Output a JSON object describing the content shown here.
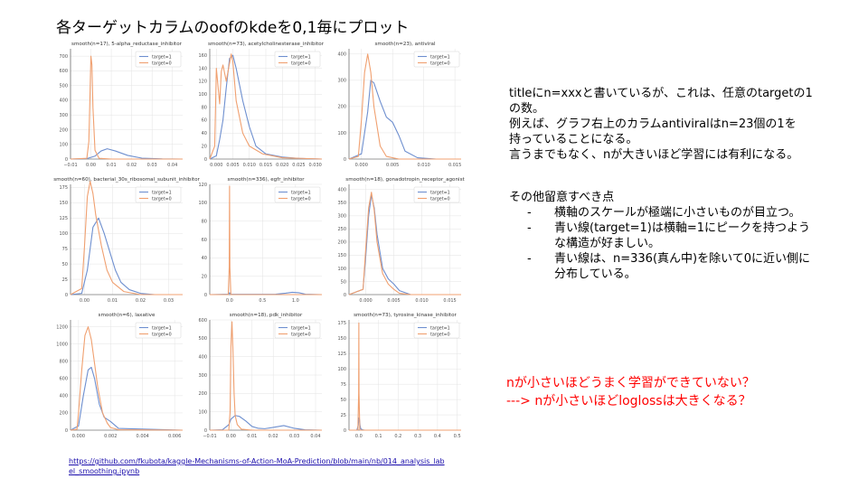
{
  "slide": {
    "title": "各ターゲットカラムのoofのkdeを0,1毎にプロット",
    "notes": {
      "lines": [
        "titleにn=xxxと書いているが、これは、任意のtargetの1",
        "の数。",
        "例えば、グラフ右上のカラムantiviralはn=23個の1を",
        "持っていることになる。",
        "言うまでもなく、nが大きいほど学習には有利になる。"
      ],
      "heading": "その他留意すべき点",
      "bullets": [
        {
          "dash": "-",
          "lines": [
            "横軸のスケールが極端に小さいものが目立つ。"
          ]
        },
        {
          "dash": "-",
          "lines": [
            "青い線(target=1)は横軸=1にピークを持つよう",
            "な構造が好ましい。"
          ]
        },
        {
          "dash": "-",
          "lines": [
            "青い線は、n=336(真ん中)を除いて0に近い側に",
            "分布している。"
          ]
        }
      ]
    },
    "red_notes": [
      "nが小さいほどうまく学習ができていない？",
      "---> nが小さいほどloglossは大きくなる？"
    ],
    "link": "https://github.com/fkubota/kaggle-Mechanisms-of-Action-MoA-Prediction/blob/main/nb/014_analysis_label_smoothing.ipynb"
  },
  "colors": {
    "target1": "#6e8fcf",
    "target0": "#f0a070",
    "grid": "#e3e3e3",
    "axis": "#444444"
  },
  "chart_data": [
    {
      "type": "line",
      "title": "smooth(n=17),  5-alpha_reductase_inhibitor",
      "xlim": [
        -0.01,
        0.045
      ],
      "ylim": [
        0,
        750
      ],
      "xticks": [
        -0.01,
        0.0,
        0.01,
        0.02,
        0.03,
        0.04
      ],
      "xticklabels": [
        "−0.01",
        "0.00",
        "0.01",
        "0.02",
        "0.03",
        "0.04"
      ],
      "yticks": [
        0,
        100,
        200,
        300,
        400,
        500,
        600,
        700
      ],
      "yticklabels": [
        "0",
        "100",
        "200",
        "300",
        "400",
        "500",
        "600",
        "700"
      ],
      "legend": [
        "target=1",
        "target=0"
      ],
      "series": [
        {
          "name": "target=1",
          "x": [
            -0.01,
            -0.002,
            0.002,
            0.005,
            0.008,
            0.012,
            0.018,
            0.025,
            0.035,
            0.045
          ],
          "y": [
            0,
            3,
            20,
            55,
            70,
            55,
            25,
            6,
            1,
            0
          ]
        },
        {
          "name": "target=0",
          "x": [
            -0.01,
            -0.002,
            -0.001,
            0.0,
            0.0005,
            0.001,
            0.002,
            0.004,
            0.01,
            0.045
          ],
          "y": [
            0,
            5,
            120,
            700,
            640,
            350,
            60,
            5,
            0,
            0
          ]
        }
      ]
    },
    {
      "type": "line",
      "title": "smooth(n=73),  acetylcholinesterase_inhibitor",
      "xlim": [
        -0.002,
        0.032
      ],
      "ylim": [
        0,
        170
      ],
      "xticks": [
        0.0,
        0.005,
        0.01,
        0.015,
        0.02,
        0.025,
        0.03
      ],
      "xticklabels": [
        "0.000",
        "0.005",
        "0.010",
        "0.015",
        "0.020",
        "0.025",
        "0.030"
      ],
      "yticks": [
        0,
        20,
        40,
        60,
        80,
        100,
        120,
        140,
        160
      ],
      "yticklabels": [
        "0",
        "20",
        "40",
        "60",
        "80",
        "100",
        "120",
        "140",
        "160"
      ],
      "legend": [
        "target=1",
        "target=0"
      ],
      "series": [
        {
          "name": "target=1",
          "x": [
            -0.002,
            0.0,
            0.001,
            0.002,
            0.003,
            0.004,
            0.005,
            0.006,
            0.008,
            0.01,
            0.012,
            0.015,
            0.02,
            0.025,
            0.032
          ],
          "y": [
            0,
            5,
            30,
            60,
            110,
            155,
            160,
            140,
            90,
            50,
            20,
            8,
            3,
            1,
            0
          ]
        },
        {
          "name": "target=0",
          "x": [
            -0.002,
            -0.0005,
            0.0,
            0.001,
            0.0015,
            0.002,
            0.003,
            0.004,
            0.0045,
            0.005,
            0.006,
            0.008,
            0.01,
            0.014,
            0.02,
            0.032
          ],
          "y": [
            0,
            20,
            140,
            85,
            135,
            145,
            120,
            148,
            162,
            150,
            90,
            40,
            20,
            8,
            2,
            0
          ]
        }
      ]
    },
    {
      "type": "line",
      "title": "smooth(n=23),  antiviral",
      "xlim": [
        -0.002,
        0.016
      ],
      "ylim": [
        0,
        420
      ],
      "xticks": [
        0.0,
        0.005,
        0.01,
        0.015
      ],
      "xticklabels": [
        "0.000",
        "0.005",
        "0.010",
        "0.015"
      ],
      "yticks": [
        0,
        100,
        200,
        300,
        400
      ],
      "yticklabels": [
        "0",
        "100",
        "200",
        "300",
        "400"
      ],
      "legend": [
        "target=1",
        "target=0"
      ],
      "series": [
        {
          "name": "target=1",
          "x": [
            -0.002,
            0.0,
            0.001,
            0.0015,
            0.002,
            0.003,
            0.004,
            0.005,
            0.006,
            0.007,
            0.009,
            0.012,
            0.016
          ],
          "y": [
            0,
            20,
            180,
            300,
            290,
            220,
            160,
            140,
            90,
            30,
            5,
            0,
            0
          ]
        },
        {
          "name": "target=0",
          "x": [
            -0.002,
            -0.0005,
            0.0,
            0.0005,
            0.001,
            0.0015,
            0.002,
            0.003,
            0.004,
            0.006,
            0.01,
            0.016
          ],
          "y": [
            0,
            10,
            150,
            330,
            400,
            330,
            200,
            50,
            10,
            0,
            0,
            0
          ]
        }
      ]
    },
    {
      "type": "line",
      "title": "smooth(n=60),  bacterial_30s_ribosomal_subunit_inhibitor",
      "xlim": [
        -0.005,
        0.035
      ],
      "ylim": [
        0,
        180
      ],
      "xticks": [
        0.0,
        0.01,
        0.02,
        0.03
      ],
      "xticklabels": [
        "0.00",
        "0.01",
        "0.02",
        "0.03"
      ],
      "yticks": [
        0,
        25,
        50,
        75,
        100,
        125,
        150,
        175
      ],
      "yticklabels": [
        "0",
        "25",
        "50",
        "75",
        "100",
        "125",
        "150",
        "175"
      ],
      "legend": [
        "target=1",
        "target=0"
      ],
      "series": [
        {
          "name": "target=1",
          "x": [
            -0.005,
            -0.001,
            0.001,
            0.003,
            0.005,
            0.007,
            0.009,
            0.011,
            0.013,
            0.016,
            0.02,
            0.025,
            0.035
          ],
          "y": [
            0,
            2,
            40,
            110,
            125,
            100,
            70,
            40,
            20,
            8,
            2,
            0,
            0
          ]
        },
        {
          "name": "target=0",
          "x": [
            -0.005,
            -0.001,
            0.0,
            0.001,
            0.002,
            0.003,
            0.004,
            0.006,
            0.008,
            0.01,
            0.014,
            0.02,
            0.035
          ],
          "y": [
            0,
            10,
            80,
            160,
            185,
            165,
            130,
            80,
            40,
            20,
            5,
            0,
            0
          ]
        }
      ]
    },
    {
      "type": "line",
      "title": "smooth(n=336),  egfr_inhibitor",
      "xlim": [
        -0.3,
        1.4
      ],
      "ylim": [
        0,
        120
      ],
      "xticks": [
        0.0,
        0.5,
        1.0
      ],
      "xticklabels": [
        "0.0",
        "0.5",
        "1.0"
      ],
      "yticks": [
        0,
        20,
        40,
        60,
        80,
        100,
        120
      ],
      "yticklabels": [
        "0",
        "20",
        "40",
        "60",
        "80",
        "100",
        "120"
      ],
      "legend": [
        "target=1",
        "target=0"
      ],
      "series": [
        {
          "name": "target=1",
          "x": [
            -0.3,
            -0.02,
            0.0,
            0.02,
            0.1,
            0.3,
            0.5,
            0.7,
            0.85,
            0.95,
            1.05,
            1.15,
            1.4
          ],
          "y": [
            0,
            0.5,
            2,
            0.5,
            0.3,
            0.3,
            0.3,
            0.5,
            1.5,
            2.5,
            2,
            0.5,
            0
          ]
        },
        {
          "name": "target=0",
          "x": [
            -0.3,
            -0.02,
            -0.005,
            0.0,
            0.005,
            0.02,
            1.4
          ],
          "y": [
            0,
            0,
            30,
            118,
            30,
            0,
            0
          ]
        }
      ]
    },
    {
      "type": "line",
      "title": "smooth(n=18),  gonadotropin_receptor_agonist",
      "xlim": [
        -0.003,
        0.017
      ],
      "ylim": [
        0,
        420
      ],
      "xticks": [
        0.0,
        0.005,
        0.01,
        0.015
      ],
      "xticklabels": [
        "0.000",
        "0.005",
        "0.010",
        "0.015"
      ],
      "yticks": [
        0,
        50,
        100,
        150,
        200,
        250,
        300,
        350,
        400
      ],
      "yticklabels": [
        "0",
        "50",
        "100",
        "150",
        "200",
        "250",
        "300",
        "350",
        "400"
      ],
      "legend": [
        "target=1",
        "target=0"
      ],
      "series": [
        {
          "name": "target=1",
          "x": [
            -0.003,
            -0.0005,
            0.0,
            0.0005,
            0.001,
            0.0015,
            0.002,
            0.003,
            0.004,
            0.005,
            0.006,
            0.008,
            0.017
          ],
          "y": [
            0,
            20,
            150,
            300,
            380,
            330,
            230,
            100,
            60,
            40,
            15,
            0,
            0
          ]
        },
        {
          "name": "target=0",
          "x": [
            -0.003,
            -0.0005,
            0.0,
            0.0005,
            0.001,
            0.0015,
            0.002,
            0.003,
            0.004,
            0.005,
            0.006,
            0.008,
            0.017
          ],
          "y": [
            0,
            20,
            180,
            330,
            390,
            320,
            200,
            80,
            40,
            20,
            5,
            0,
            0
          ]
        }
      ]
    },
    {
      "type": "line",
      "title": "smooth(n=6),  laxative",
      "xlim": [
        -0.0005,
        0.0065
      ],
      "ylim": [
        0,
        1280
      ],
      "xticks": [
        0.0,
        0.002,
        0.004,
        0.006
      ],
      "xticklabels": [
        "0.000",
        "0.002",
        "0.004",
        "0.006"
      ],
      "yticks": [
        0,
        200,
        400,
        600,
        800,
        1000,
        1200
      ],
      "yticklabels": [
        "0",
        "200",
        "400",
        "600",
        "800",
        "1000",
        "1200"
      ],
      "legend": [
        "target=1",
        "target=0"
      ],
      "series": [
        {
          "name": "target=1",
          "x": [
            -0.0005,
            0.0,
            0.0003,
            0.0006,
            0.0008,
            0.001,
            0.0013,
            0.0016,
            0.002,
            0.0025,
            0.0065
          ],
          "y": [
            0,
            50,
            400,
            700,
            730,
            600,
            300,
            150,
            100,
            20,
            0
          ]
        },
        {
          "name": "target=0",
          "x": [
            -0.0005,
            -0.0001,
            0.0,
            0.0002,
            0.0004,
            0.0006,
            0.0008,
            0.0012,
            0.0015,
            0.0018,
            0.002,
            0.0025,
            0.0065
          ],
          "y": [
            0,
            10,
            200,
            700,
            1100,
            1200,
            1050,
            500,
            200,
            80,
            30,
            5,
            0
          ]
        }
      ]
    },
    {
      "type": "line",
      "title": "smooth(n=18),  pdk_inhibitor",
      "xlim": [
        -0.01,
        0.043
      ],
      "ylim": [
        0,
        600
      ],
      "xticks": [
        -0.01,
        0.0,
        0.01,
        0.02,
        0.03,
        0.04
      ],
      "xticklabels": [
        "−0.01",
        "0.00",
        "0.01",
        "0.02",
        "0.03",
        "0.04"
      ],
      "yticks": [
        0,
        100,
        200,
        300,
        400,
        500,
        600
      ],
      "yticklabels": [
        "0",
        "100",
        "200",
        "300",
        "400",
        "500",
        "600"
      ],
      "legend": [
        "target=1",
        "target=0"
      ],
      "series": [
        {
          "name": "target=1",
          "x": [
            -0.01,
            -0.004,
            -0.001,
            0.0,
            0.002,
            0.004,
            0.007,
            0.01,
            0.013,
            0.016,
            0.02,
            0.025,
            0.03,
            0.035,
            0.043
          ],
          "y": [
            0,
            2,
            30,
            60,
            80,
            75,
            50,
            20,
            10,
            8,
            15,
            25,
            10,
            2,
            0
          ]
        },
        {
          "name": "target=0",
          "x": [
            -0.01,
            -0.001,
            -0.0004,
            0.0,
            0.0005,
            0.001,
            0.0015,
            0.002,
            0.003,
            0.005,
            0.01,
            0.043
          ],
          "y": [
            0,
            0,
            100,
            450,
            590,
            420,
            200,
            80,
            30,
            5,
            0,
            0
          ]
        }
      ]
    },
    {
      "type": "line",
      "title": "smooth(n=73),  tyrosine_kinase_inhibitor",
      "xlim": [
        -0.05,
        0.52
      ],
      "ylim": [
        0,
        180
      ],
      "xticks": [
        0.0,
        0.1,
        0.2,
        0.3,
        0.4,
        0.5
      ],
      "xticklabels": [
        "0.0",
        "0.1",
        "0.2",
        "0.3",
        "0.4",
        "0.5"
      ],
      "yticks": [
        0,
        25,
        50,
        75,
        100,
        125,
        150,
        175
      ],
      "yticklabels": [
        "0",
        "25",
        "50",
        "75",
        "100",
        "125",
        "150",
        "175"
      ],
      "legend": [
        "target=1",
        "target=0"
      ],
      "series": [
        {
          "name": "target=1",
          "x": [
            -0.05,
            -0.01,
            -0.003,
            0.0,
            0.003,
            0.006,
            0.01,
            0.02,
            0.03,
            0.52
          ],
          "y": [
            0,
            0,
            8,
            20,
            18,
            8,
            2,
            0.5,
            0,
            0
          ]
        },
        {
          "name": "target=0",
          "x": [
            -0.05,
            -0.005,
            -0.001,
            0.0,
            0.001,
            0.005,
            0.52
          ],
          "y": [
            0,
            0,
            60,
            175,
            60,
            0,
            0
          ]
        }
      ]
    }
  ]
}
